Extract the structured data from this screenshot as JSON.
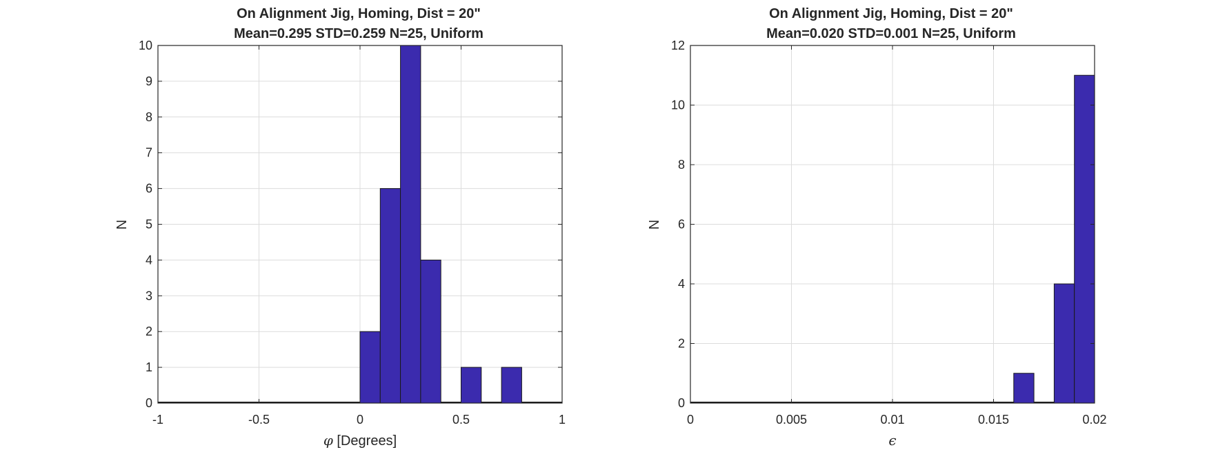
{
  "chart_data": [
    {
      "type": "bar",
      "title": "On Alignment Jig, Homing, Dist = 20\"",
      "subtitle": "Mean=0.295 STD=0.259 N=25, Uniform",
      "xlabel_symbol": "φ",
      "xlabel_text": " [Degrees]",
      "ylabel": "N",
      "xlim": [
        -1,
        1
      ],
      "ylim": [
        0,
        10
      ],
      "xticks": [
        -1,
        -0.5,
        0,
        0.5,
        1
      ],
      "xtick_labels": [
        "-1",
        "-0.5",
        "0",
        "0.5",
        "1"
      ],
      "yticks": [
        0,
        1,
        2,
        3,
        4,
        5,
        6,
        7,
        8,
        9,
        10
      ],
      "ytick_labels": [
        "0",
        "1",
        "2",
        "3",
        "4",
        "5",
        "6",
        "7",
        "8",
        "9",
        "10"
      ],
      "grid": true,
      "bins": [
        {
          "x0": -1.0,
          "x1": 0.0,
          "value": 0
        },
        {
          "x0": 0.0,
          "x1": 0.1,
          "value": 2
        },
        {
          "x0": 0.1,
          "x1": 0.2,
          "value": 6
        },
        {
          "x0": 0.2,
          "x1": 0.3,
          "value": 10
        },
        {
          "x0": 0.3,
          "x1": 0.4,
          "value": 4
        },
        {
          "x0": 0.4,
          "x1": 0.5,
          "value": 0
        },
        {
          "x0": 0.5,
          "x1": 0.6,
          "value": 1
        },
        {
          "x0": 0.6,
          "x1": 0.7,
          "value": 0
        },
        {
          "x0": 0.7,
          "x1": 0.8,
          "value": 1
        },
        {
          "x0": 0.8,
          "x1": 1.0,
          "value": 0
        }
      ],
      "bar_color": "#3b2bae"
    },
    {
      "type": "bar",
      "title": "On Alignment Jig, Homing, Dist = 20\"",
      "subtitle": "Mean=0.020 STD=0.001 N=25, Uniform",
      "xlabel_symbol": "ϵ",
      "xlabel_text": "",
      "ylabel": "N",
      "xlim": [
        0,
        0.02
      ],
      "ylim": [
        0,
        12
      ],
      "xticks": [
        0,
        0.005,
        0.01,
        0.015,
        0.02
      ],
      "xtick_labels": [
        "0",
        "0.005",
        "0.01",
        "0.015",
        "0.02"
      ],
      "yticks": [
        0,
        2,
        4,
        6,
        8,
        10,
        12
      ],
      "ytick_labels": [
        "0",
        "2",
        "4",
        "6",
        "8",
        "10",
        "12"
      ],
      "grid": true,
      "bins": [
        {
          "x0": 0.0,
          "x1": 0.016,
          "value": 0
        },
        {
          "x0": 0.016,
          "x1": 0.017,
          "value": 1
        },
        {
          "x0": 0.017,
          "x1": 0.018,
          "value": 0
        },
        {
          "x0": 0.018,
          "x1": 0.019,
          "value": 4
        },
        {
          "x0": 0.019,
          "x1": 0.02,
          "value": 11
        }
      ],
      "bar_color": "#3b2bae"
    }
  ]
}
